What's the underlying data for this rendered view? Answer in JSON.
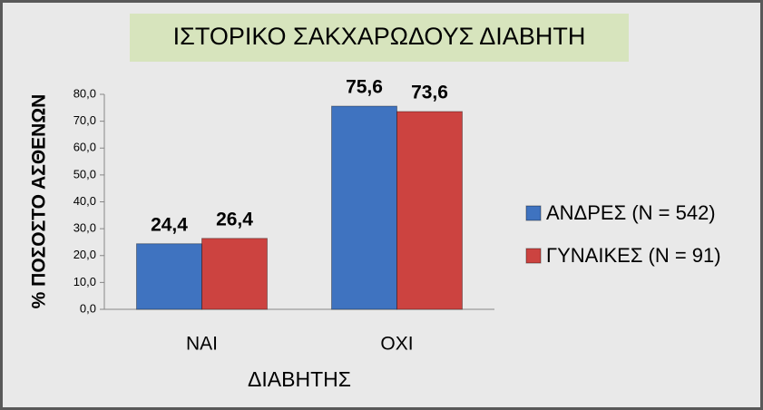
{
  "chart_data": {
    "type": "bar",
    "title": "ΙΣΤΟΡΙΚΟ ΣΑΚΧΑΡΩΔΟΥΣ ΔΙΑΒΗΤΗ",
    "y_label": "% ΠΟΣΟΣΤΟ ΑΣΘΕΝΩΝ",
    "x_label": "ΔΙΑΒΗΤΗΣ",
    "categories": [
      "ΝΑΙ",
      "ΟΧΙ"
    ],
    "series": [
      {
        "name": "ΑΝΔΡΕΣ (N = 542)",
        "color": "#3f73c0",
        "values": [
          24.4,
          75.6
        ],
        "value_labels": [
          "24,4",
          "75,6"
        ]
      },
      {
        "name": "ΓΥΝΑΙΚΕΣ (N = 91)",
        "color": "#cc4340",
        "values": [
          26.4,
          73.6
        ],
        "value_labels": [
          "26,4",
          "73,6"
        ]
      }
    ],
    "ylim": [
      0,
      80
    ],
    "yticks": [
      {
        "value": 0,
        "label": "0,0"
      },
      {
        "value": 10,
        "label": "10,0"
      },
      {
        "value": 20,
        "label": "20,0"
      },
      {
        "value": 30,
        "label": "30,0"
      },
      {
        "value": 40,
        "label": "40,0"
      },
      {
        "value": 50,
        "label": "50,0"
      },
      {
        "value": 60,
        "label": "60,0"
      },
      {
        "value": 70,
        "label": "70,0"
      },
      {
        "value": 80,
        "label": "80,0"
      }
    ],
    "grid": false,
    "legend": "right"
  }
}
